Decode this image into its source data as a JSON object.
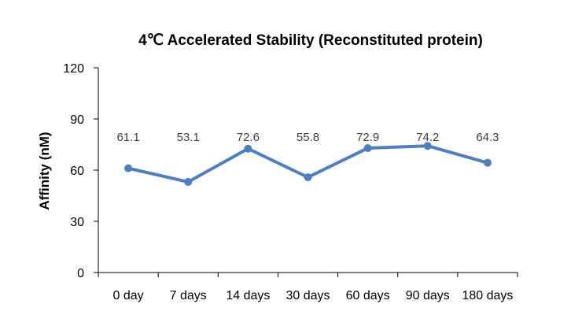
{
  "chart_data": {
    "type": "line",
    "title": "4℃ Accelerated Stability (Reconstituted protein)",
    "xlabel": "",
    "ylabel": "Affinity (nM)",
    "categories": [
      "0 day",
      "7 days",
      "14 days",
      "30 days",
      "60 days",
      "90 days",
      "180 days"
    ],
    "series": [
      {
        "values": [
          61.1,
          53.1,
          72.6,
          55.8,
          72.9,
          74.2,
          64.3
        ],
        "data_labels": [
          "61.1",
          "53.1",
          "72.6",
          "55.8",
          "72.9",
          "74.2",
          "64.3"
        ],
        "color": "#4f7fbf"
      }
    ],
    "ylim": [
      0,
      120
    ],
    "yticks": [
      0,
      30,
      60,
      90,
      120
    ],
    "ytick_labels": [
      "0",
      "30",
      "60",
      "90",
      "120"
    ],
    "grid": false,
    "legend": "none"
  }
}
